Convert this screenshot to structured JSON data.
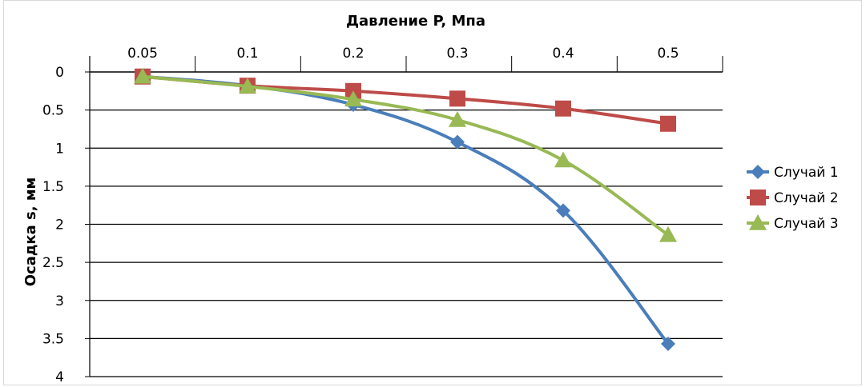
{
  "chart_data": {
    "type": "line",
    "title": "",
    "xlabel": "Давление P, Мпа",
    "ylabel": "Осадка s, мм",
    "x": [
      "0.05",
      "0.1",
      "0.2",
      "0.3",
      "0.4",
      "0.5"
    ],
    "y_ticks": [
      "0",
      "0.5",
      "1",
      "1.5",
      "2",
      "2.5",
      "3",
      "3.5",
      "4"
    ],
    "ylim": [
      0,
      4
    ],
    "y_inverted": true,
    "x_axis_position": "top",
    "grid": true,
    "legend_position": "right",
    "series": [
      {
        "name": "Случай 1",
        "values": [
          0.06,
          0.18,
          0.43,
          0.92,
          1.82,
          3.57
        ],
        "color": "#4a7ebb",
        "marker": "diamond"
      },
      {
        "name": "Случай 2",
        "values": [
          0.06,
          0.18,
          0.25,
          0.35,
          0.48,
          0.68
        ],
        "color": "#be4b48",
        "marker": "square"
      },
      {
        "name": "Случай 3",
        "values": [
          0.06,
          0.19,
          0.36,
          0.63,
          1.16,
          2.14
        ],
        "color": "#98b954",
        "marker": "triangle"
      }
    ]
  }
}
